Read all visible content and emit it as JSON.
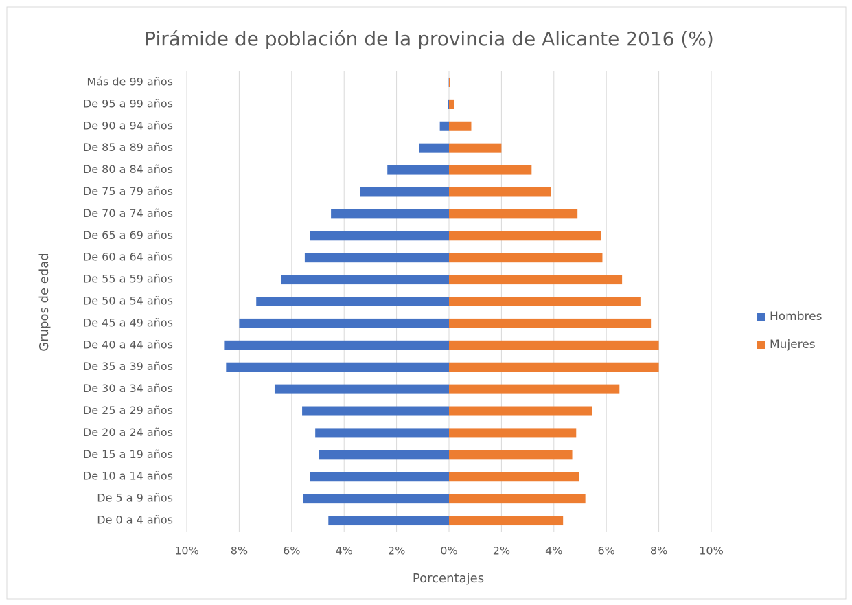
{
  "chart_data": {
    "type": "bar",
    "orientation": "horizontal",
    "stacked": true,
    "title": "Pirámide de población de la provincia de Alicante 2016 (%)",
    "x_label": "Porcentajes",
    "y_label": "Grupos de edad",
    "categories": [
      "Más de 99 años",
      "De 95 a 99 años",
      "De 90 a 94 años",
      "De 85 a 89 años",
      "De 80 a 84 años",
      "De 75 a 79 años",
      "De 70 a 74 años",
      "De 65 a 69 años",
      "De 60 a 64 años",
      "De 55 a 59 años",
      "De 50 a 54 años",
      "De 45 a 49 años",
      "De 40 a 44 años",
      "De 35 a 39 años",
      "De 30 a 34 años",
      "De 25 a 29 años",
      "De 20 a 24 años",
      "De 15 a 19 años",
      "De 10 a 14 años",
      "De 5 a 9 años",
      "De 0 a 4 años"
    ],
    "series": [
      {
        "name": "Hombres",
        "color": "#4472c4",
        "values": [
          -0.01,
          -0.05,
          -0.35,
          -1.15,
          -2.35,
          -3.4,
          -4.5,
          -5.3,
          -5.5,
          -6.4,
          -7.35,
          -8.0,
          -8.55,
          -8.5,
          -6.65,
          -5.6,
          -5.1,
          -4.95,
          -5.3,
          -5.55,
          -4.6
        ]
      },
      {
        "name": "Mujeres",
        "color": "#ed7d31",
        "values": [
          0.05,
          0.2,
          0.85,
          2.0,
          3.15,
          3.9,
          4.9,
          5.8,
          5.85,
          6.6,
          7.3,
          7.7,
          8.0,
          8.0,
          6.5,
          5.45,
          4.85,
          4.7,
          4.95,
          5.2,
          4.35
        ]
      }
    ],
    "xlim": [
      -10,
      10
    ],
    "xticks": [
      {
        "value": -10,
        "label": "10%"
      },
      {
        "value": -8,
        "label": "8%"
      },
      {
        "value": -6,
        "label": "6%"
      },
      {
        "value": -4,
        "label": "4%"
      },
      {
        "value": -2,
        "label": "2%"
      },
      {
        "value": 0,
        "label": "0%"
      },
      {
        "value": 2,
        "label": "2%"
      },
      {
        "value": 4,
        "label": "4%"
      },
      {
        "value": 6,
        "label": "6%"
      },
      {
        "value": 8,
        "label": "8%"
      },
      {
        "value": 10,
        "label": "10%"
      }
    ],
    "grid": true,
    "legend": "right"
  }
}
